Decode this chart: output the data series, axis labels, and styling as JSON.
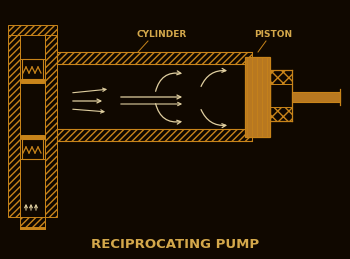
{
  "bg_color": "#100800",
  "line_color": "#c8841a",
  "fill_color": "#b87820",
  "white_arrow_color": "#e0cfa0",
  "text_color": "#d4a84b",
  "title": "RECIPROCATING PUMP",
  "label_cylinder": "CYLINDER",
  "label_piston": "PISTON",
  "title_fontsize": 9.5,
  "label_fontsize": 6.5,
  "figw": 3.5,
  "figh": 2.59,
  "dpi": 100
}
